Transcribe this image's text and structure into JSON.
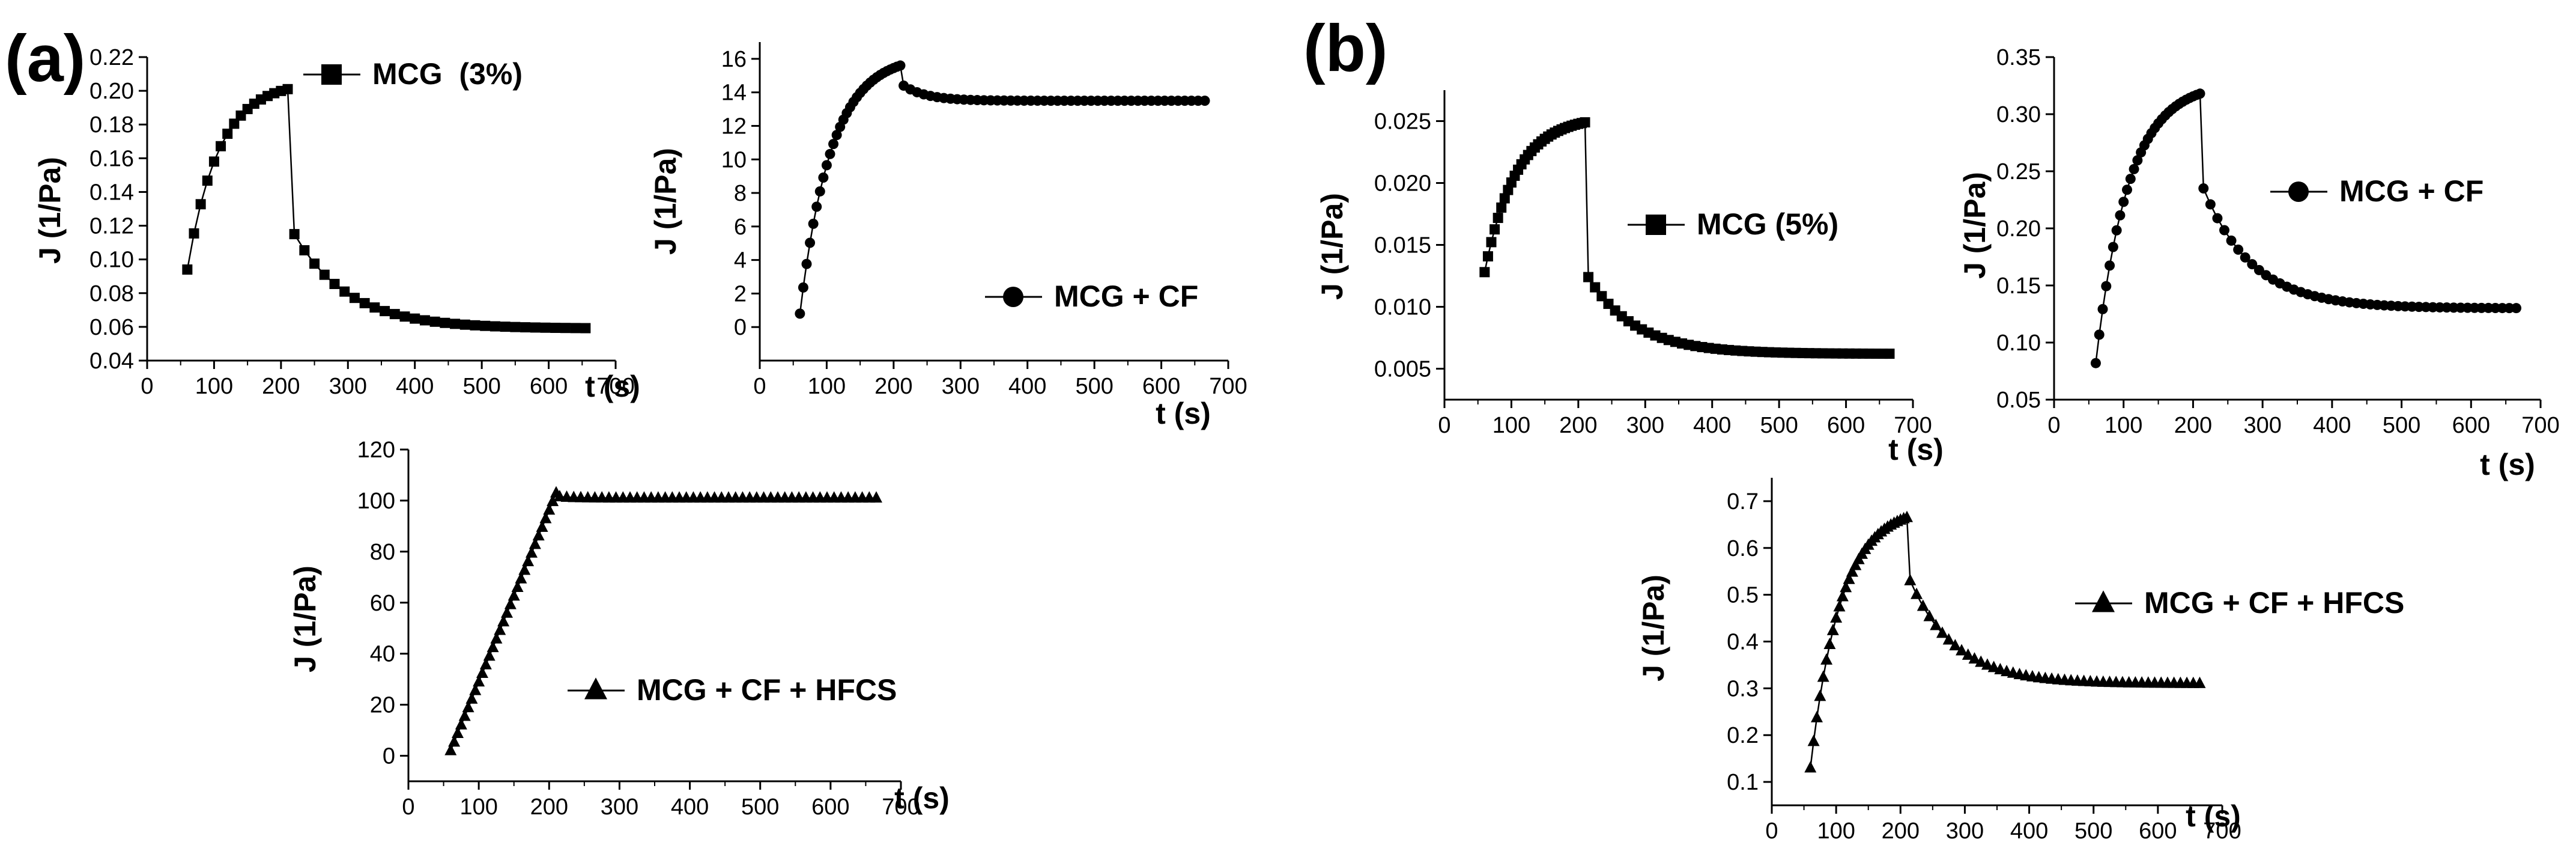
{
  "figure": {
    "panel_labels": [
      "(a)",
      "(b)"
    ]
  },
  "chart_data": [
    {
      "id": "a1",
      "group": "(a)",
      "type": "line",
      "legend": "MCG  (3%)",
      "marker": "square",
      "xlabel": "t (s)",
      "ylabel": "J (1/Pa)",
      "xlim": [
        0,
        700
      ],
      "ylim": [
        0.04,
        0.22
      ],
      "xticks": [
        0,
        100,
        200,
        300,
        400,
        500,
        600,
        700
      ],
      "yticks": [
        0.04,
        0.06,
        0.08,
        0.1,
        0.12,
        0.14,
        0.16,
        0.18,
        0.2,
        0.22
      ],
      "ytick_labels": [
        "0.04",
        "0.06",
        "0.08",
        "0.10",
        "0.12",
        "0.14",
        "0.16",
        "0.18",
        "0.20",
        "0.22"
      ],
      "curve": {
        "t0": 60,
        "t1": 210,
        "dt": 10,
        "y0": 0.094,
        "y_peak": 0.201,
        "y_drop": 0.115,
        "y_inf": 0.059,
        "tail_dt": 15,
        "t_end": 665,
        "tau": 80
      }
    },
    {
      "id": "a2",
      "group": "(a)",
      "type": "line",
      "legend": "MCG + CF",
      "marker": "circle",
      "xlabel": "t (s)",
      "ylabel": "J (1/Pa)",
      "xlim": [
        0,
        700
      ],
      "ylim": [
        -2,
        17
      ],
      "xticks": [
        0,
        100,
        200,
        300,
        400,
        500,
        600,
        700
      ],
      "yticks": [
        0,
        2,
        4,
        6,
        8,
        10,
        12,
        14,
        16
      ],
      "ytick_labels": [
        "0",
        "2",
        "4",
        "6",
        "8",
        "10",
        "12",
        "14",
        "16"
      ],
      "curve": {
        "t0": 60,
        "t1": 210,
        "dt": 5,
        "y0": 0.8,
        "y_peak": 15.6,
        "y_drop": 14.4,
        "y_inf": 13.5,
        "tail_dt": 10,
        "t_end": 665,
        "tau": 35
      }
    },
    {
      "id": "a3",
      "group": "(a)",
      "type": "line",
      "legend": "MCG + CF + HFCS",
      "marker": "triangle",
      "xlabel": "t (s)",
      "ylabel": "J (1/Pa)",
      "xlim": [
        0,
        700
      ],
      "ylim": [
        -10,
        120
      ],
      "xticks": [
        0,
        100,
        200,
        300,
        400,
        500,
        600,
        700
      ],
      "yticks": [
        0,
        20,
        40,
        60,
        80,
        100,
        120
      ],
      "ytick_labels": [
        "0",
        "20",
        "40",
        "60",
        "80",
        "100",
        "120"
      ],
      "curve": {
        "t0": 60,
        "t1": 210,
        "dt": 5,
        "y0": 2,
        "y_peak": 103,
        "y_drop": 101.5,
        "y_inf": 101,
        "tail_dt": 10,
        "t_end": 665,
        "tau": 20,
        "linear": true
      }
    },
    {
      "id": "b1",
      "group": "(b)",
      "type": "line",
      "legend": "MCG (5%)",
      "marker": "square",
      "xlabel": "t (s)",
      "ylabel": "J (1/Pa)",
      "xlim": [
        0,
        700
      ],
      "ylim": [
        0.0025,
        0.0275
      ],
      "xticks": [
        0,
        100,
        200,
        300,
        400,
        500,
        600,
        700
      ],
      "yticks": [
        0.005,
        0.01,
        0.015,
        0.02,
        0.025
      ],
      "ytick_labels": [
        "0.005",
        "0.010",
        "0.015",
        "0.020",
        "0.025"
      ],
      "curve": {
        "t0": 60,
        "t1": 210,
        "dt": 5,
        "y0": 0.0128,
        "y_peak": 0.0249,
        "y_drop": 0.0124,
        "y_inf": 0.0062,
        "tail_dt": 10,
        "t_end": 665,
        "tau": 70
      }
    },
    {
      "id": "b2",
      "group": "(b)",
      "type": "line",
      "legend": "MCG + CF",
      "marker": "circle",
      "xlabel": "t (s)",
      "ylabel": "J (1/Pa)",
      "xlim": [
        0,
        700
      ],
      "ylim": [
        0.05,
        0.35
      ],
      "xticks": [
        0,
        100,
        200,
        300,
        400,
        500,
        600,
        700
      ],
      "yticks": [
        0.05,
        0.1,
        0.15,
        0.2,
        0.25,
        0.3,
        0.35
      ],
      "ytick_labels": [
        "0.05",
        "0.10",
        "0.15",
        "0.20",
        "0.25",
        "0.30",
        "0.35"
      ],
      "curve": {
        "t0": 60,
        "t1": 210,
        "dt": 5,
        "y0": 0.082,
        "y_peak": 0.318,
        "y_drop": 0.235,
        "y_inf": 0.13,
        "tail_dt": 10,
        "t_end": 665,
        "tau": 70
      }
    },
    {
      "id": "b3",
      "group": "(b)",
      "type": "line",
      "legend": "MCG + CF + HFCS",
      "marker": "triangle",
      "xlabel": "t (s)",
      "ylabel": "J (1/Pa)",
      "xlim": [
        0,
        700
      ],
      "ylim": [
        0.05,
        0.75
      ],
      "xticks": [
        0,
        100,
        200,
        300,
        400,
        500,
        600,
        700
      ],
      "yticks": [
        0.1,
        0.2,
        0.3,
        0.4,
        0.5,
        0.6,
        0.7
      ],
      "ytick_labels": [
        "0.1",
        "0.2",
        "0.3",
        "0.4",
        "0.5",
        "0.6",
        "0.7"
      ],
      "curve": {
        "t0": 60,
        "t1": 210,
        "dt": 5,
        "y0": 0.13,
        "y_peak": 0.665,
        "y_drop": 0.53,
        "y_inf": 0.31,
        "tail_dt": 10,
        "t_end": 665,
        "tau": 70
      }
    }
  ]
}
